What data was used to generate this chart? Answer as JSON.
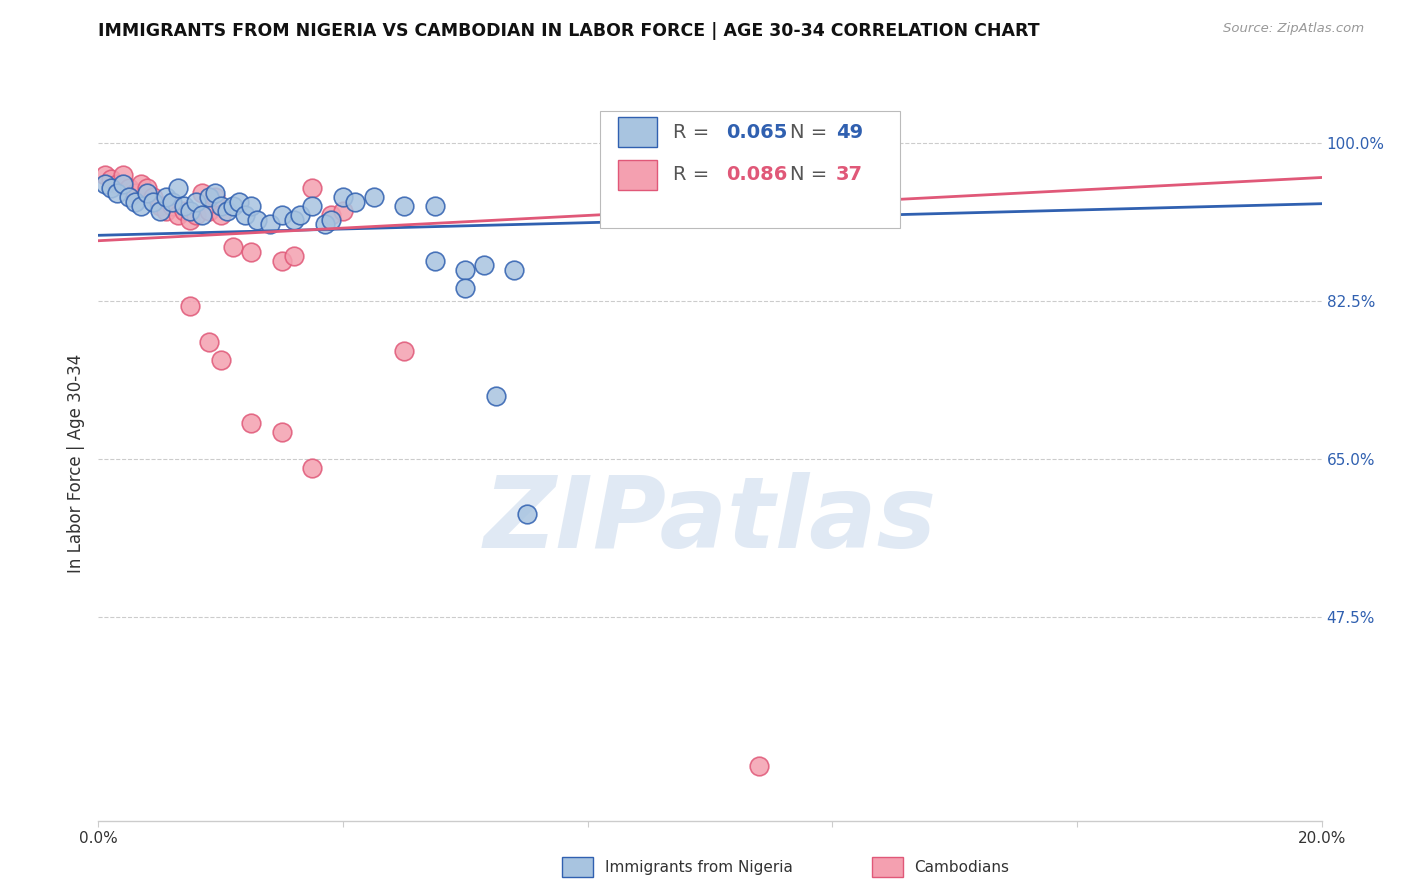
{
  "title": "IMMIGRANTS FROM NIGERIA VS CAMBODIAN IN LABOR FORCE | AGE 30-34 CORRELATION CHART",
  "source": "Source: ZipAtlas.com",
  "ylabel": "In Labor Force | Age 30-34",
  "nigeria_label": "Immigrants from Nigeria",
  "cambodian_label": "Cambodians",
  "nigeria_R": "0.065",
  "nigeria_N": "49",
  "cambodian_R": "0.086",
  "cambodian_N": "37",
  "nigeria_color": "#a8c4e0",
  "cambodian_color": "#f4a0b0",
  "nigeria_line_color": "#3060b0",
  "cambodian_line_color": "#e05878",
  "nigeria_scatter": [
    [
      0.001,
      0.955
    ],
    [
      0.002,
      0.95
    ],
    [
      0.003,
      0.945
    ],
    [
      0.004,
      0.955
    ],
    [
      0.005,
      0.94
    ],
    [
      0.006,
      0.935
    ],
    [
      0.007,
      0.93
    ],
    [
      0.008,
      0.945
    ],
    [
      0.009,
      0.935
    ],
    [
      0.01,
      0.925
    ],
    [
      0.011,
      0.94
    ],
    [
      0.012,
      0.935
    ],
    [
      0.013,
      0.95
    ],
    [
      0.014,
      0.93
    ],
    [
      0.015,
      0.925
    ],
    [
      0.016,
      0.935
    ],
    [
      0.017,
      0.92
    ],
    [
      0.018,
      0.94
    ],
    [
      0.019,
      0.945
    ],
    [
      0.02,
      0.93
    ],
    [
      0.021,
      0.925
    ],
    [
      0.022,
      0.93
    ],
    [
      0.023,
      0.935
    ],
    [
      0.024,
      0.92
    ],
    [
      0.025,
      0.93
    ],
    [
      0.026,
      0.915
    ],
    [
      0.028,
      0.91
    ],
    [
      0.03,
      0.92
    ],
    [
      0.032,
      0.915
    ],
    [
      0.033,
      0.92
    ],
    [
      0.035,
      0.93
    ],
    [
      0.037,
      0.91
    ],
    [
      0.038,
      0.915
    ],
    [
      0.04,
      0.94
    ],
    [
      0.042,
      0.935
    ],
    [
      0.045,
      0.94
    ],
    [
      0.05,
      0.93
    ],
    [
      0.055,
      0.93
    ],
    [
      0.09,
      0.93
    ],
    [
      0.095,
      0.935
    ],
    [
      0.1,
      0.965
    ],
    [
      0.11,
      0.965
    ],
    [
      0.055,
      0.87
    ],
    [
      0.06,
      0.86
    ],
    [
      0.065,
      0.72
    ],
    [
      0.07,
      0.59
    ],
    [
      0.06,
      0.84
    ],
    [
      0.063,
      0.865
    ],
    [
      0.068,
      0.86
    ]
  ],
  "cambodian_scatter": [
    [
      0.001,
      0.965
    ],
    [
      0.002,
      0.96
    ],
    [
      0.003,
      0.955
    ],
    [
      0.004,
      0.965
    ],
    [
      0.005,
      0.95
    ],
    [
      0.006,
      0.945
    ],
    [
      0.007,
      0.955
    ],
    [
      0.008,
      0.95
    ],
    [
      0.009,
      0.94
    ],
    [
      0.01,
      0.93
    ],
    [
      0.011,
      0.925
    ],
    [
      0.012,
      0.93
    ],
    [
      0.013,
      0.92
    ],
    [
      0.014,
      0.925
    ],
    [
      0.015,
      0.915
    ],
    [
      0.016,
      0.92
    ],
    [
      0.017,
      0.945
    ],
    [
      0.018,
      0.925
    ],
    [
      0.019,
      0.94
    ],
    [
      0.02,
      0.92
    ],
    [
      0.022,
      0.885
    ],
    [
      0.025,
      0.88
    ],
    [
      0.03,
      0.87
    ],
    [
      0.032,
      0.875
    ],
    [
      0.035,
      0.95
    ],
    [
      0.038,
      0.92
    ],
    [
      0.04,
      0.925
    ],
    [
      0.015,
      0.82
    ],
    [
      0.018,
      0.78
    ],
    [
      0.02,
      0.76
    ],
    [
      0.025,
      0.69
    ],
    [
      0.03,
      0.68
    ],
    [
      0.035,
      0.64
    ],
    [
      0.115,
      0.95
    ],
    [
      0.11,
      0.93
    ],
    [
      0.108,
      0.31
    ],
    [
      0.05,
      0.77
    ]
  ],
  "nigeria_trend_x": [
    0.0,
    0.2
  ],
  "nigeria_trend_y": [
    0.898,
    0.933
  ],
  "cambodian_trend_x": [
    0.0,
    0.2
  ],
  "cambodian_trend_y": [
    0.892,
    0.962
  ],
  "xlim": [
    0.0,
    0.2
  ],
  "ylim": [
    0.25,
    1.04
  ],
  "ytick_vals": [
    1.0,
    0.825,
    0.65,
    0.475
  ],
  "ytick_labels": [
    "100.0%",
    "82.5%",
    "65.0%",
    "47.5%"
  ],
  "xtick_vals": [
    0.0,
    0.04,
    0.08,
    0.12,
    0.16,
    0.2
  ],
  "xtick_labels": [
    "0.0%",
    "",
    "",
    "",
    "",
    "20.0%"
  ],
  "grid_color": "#cccccc",
  "watermark_text": "ZIPatlas",
  "background_color": "#ffffff"
}
